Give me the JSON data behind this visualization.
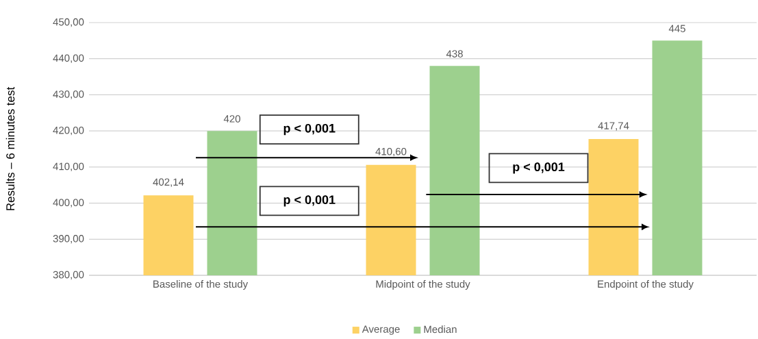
{
  "chart_data": {
    "type": "bar",
    "ylabel": "Results – 6 minutes test",
    "categories": [
      "Baseline of the study",
      "Midpoint of the study",
      "Endpoint of the study"
    ],
    "series": [
      {
        "name": "Average",
        "color": "#fdd264",
        "values": [
          402.14,
          410.6,
          417.74
        ],
        "value_labels": [
          "402,14",
          "410,60",
          "417,74"
        ]
      },
      {
        "name": "Median",
        "color": "#9dd08e",
        "values": [
          420,
          438,
          445
        ],
        "value_labels": [
          "420",
          "438",
          "445"
        ]
      }
    ],
    "ylim": [
      380,
      450
    ],
    "yticks": [
      {
        "value": 380,
        "label": "380,00"
      },
      {
        "value": 390,
        "label": "390,00"
      },
      {
        "value": 400,
        "label": "400,00"
      },
      {
        "value": 410,
        "label": "410,00"
      },
      {
        "value": 420,
        "label": "420,00"
      },
      {
        "value": 430,
        "label": "430,00"
      },
      {
        "value": 440,
        "label": "440,00"
      },
      {
        "value": 450,
        "label": "450,00"
      }
    ],
    "grid": "y",
    "legend": "bottom",
    "annotations": [
      "p < 0,001",
      "p < 0,001",
      "p < 0,001"
    ]
  }
}
